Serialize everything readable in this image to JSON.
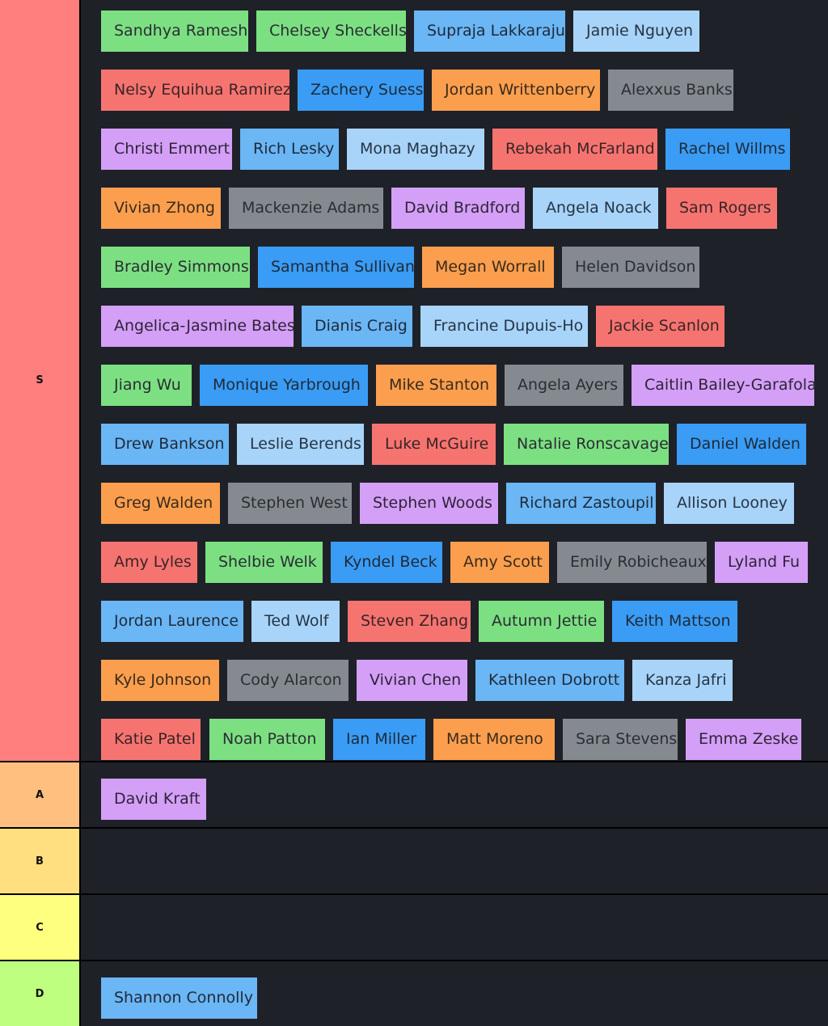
{
  "tiers": [
    {
      "label": "S",
      "color": "#ff7f7f",
      "items": [
        [
          "Sandhya Ramesh",
          "Chelsey Sheckells",
          "Supraja Lakkaraju",
          "Jamie Nguyen"
        ],
        [
          "Nelsy Equihua Ramirez",
          "Zachery Suess",
          "Jordan Writtenberry",
          "Alexxus Banks"
        ],
        [
          "Christi Emmert",
          "Rich Lesky",
          "Mona Maghazy",
          "Rebekah McFarland",
          "Rachel Willms"
        ],
        [
          "Vivian Zhong",
          "Mackenzie Adams",
          "David Bradford",
          "Angela Noack",
          "Sam Rogers"
        ],
        [
          "Bradley Simmons",
          "Samantha Sullivan",
          "Megan Worrall",
          "Helen Davidson"
        ],
        [
          "Angelica-Jasmine Bates",
          "Dianis Craig",
          "Francine Dupuis-Ho",
          "Jackie Scanlon"
        ],
        [
          "Jiang Wu",
          "Monique Yarbrough",
          "Mike Stanton",
          "Angela Ayers",
          "Caitlin Bailey-Garafola"
        ],
        [
          "Drew Bankson",
          "Leslie Berends",
          "Luke McGuire",
          "Natalie Ronscavage",
          "Daniel Walden"
        ],
        [
          "Greg Walden",
          "Stephen West",
          "Stephen Woods",
          "Richard Zastoupil",
          "Allison Looney"
        ],
        [
          "Amy Lyles",
          "Shelbie Welk",
          "Kyndel Beck",
          "Amy Scott",
          "Emily Robicheaux",
          "Lyland Fu"
        ],
        [
          "Jordan Laurence",
          "Ted Wolf",
          "Steven Zhang",
          "Autumn Jettie",
          "Keith Mattson"
        ],
        [
          "Kyle Johnson",
          "Cody Alarcon",
          "Vivian Chen",
          "Kathleen Dobrott",
          "Kanza Jafri"
        ],
        [
          "Katie Patel",
          "Noah Patton",
          "Ian Miller",
          "Matt Moreno",
          "Sara Stevens",
          "Emma Zeske"
        ]
      ]
    },
    {
      "label": "A",
      "color": "#ffbf7f",
      "items": [
        [
          "David Kraft"
        ]
      ]
    },
    {
      "label": "B",
      "color": "#ffdf7f",
      "items": []
    },
    {
      "label": "C",
      "color": "#ffff7f",
      "items": []
    },
    {
      "label": "D",
      "color": "#bfff7f",
      "items": [
        [
          "Shannon Connolly"
        ]
      ]
    }
  ]
}
